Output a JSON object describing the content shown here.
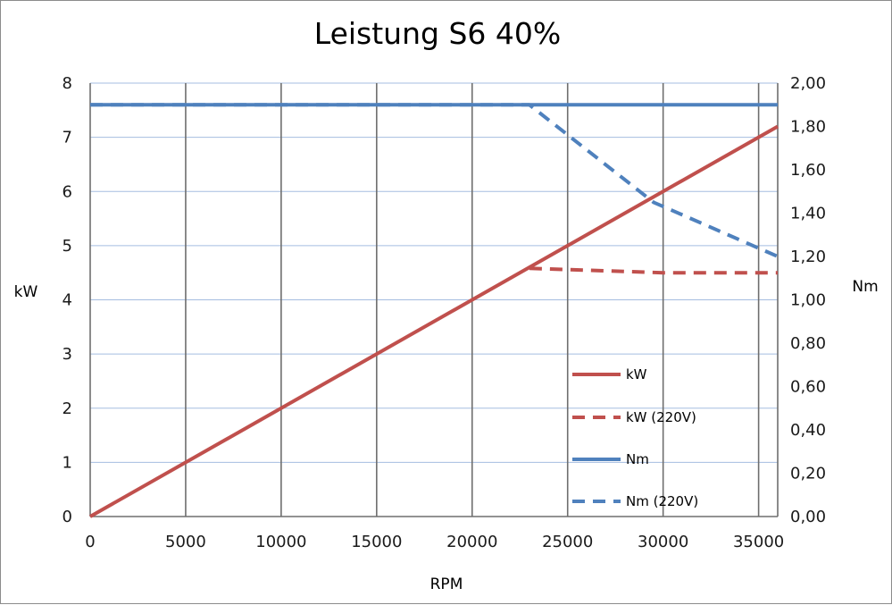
{
  "chart_data": {
    "type": "line",
    "title": "Leistung S6 40%",
    "xlabel": "RPM",
    "ylabel": "kW",
    "y2label": "Nm",
    "xlim": [
      0,
      36000
    ],
    "ylim": [
      0,
      8
    ],
    "y2lim": [
      0,
      2
    ],
    "xticks": [
      0,
      5000,
      10000,
      15000,
      20000,
      25000,
      30000,
      35000
    ],
    "yticks": [
      0,
      1,
      2,
      3,
      4,
      5,
      6,
      7,
      8
    ],
    "y2ticks": [
      "0,00",
      "0,20",
      "0,40",
      "0,60",
      "0,80",
      "1,00",
      "1,20",
      "1,40",
      "1,60",
      "1,80",
      "2,00"
    ],
    "grid": {
      "vertical": true,
      "horizontal": true
    },
    "legend_position": "lower-right",
    "colors": {
      "red": "#c0504d",
      "blue": "#4f81bd"
    },
    "series": [
      {
        "name": "kW",
        "axis": "left",
        "style": "solid",
        "color": "#c0504d",
        "x": [
          0,
          36000
        ],
        "y": [
          0,
          7.2
        ]
      },
      {
        "name": "kW (220V)",
        "axis": "left",
        "style": "dashed",
        "color": "#c0504d",
        "x": [
          23000,
          30000,
          36000
        ],
        "y": [
          4.58,
          4.5,
          4.5
        ]
      },
      {
        "name": "Nm",
        "axis": "right",
        "style": "solid",
        "color": "#4f81bd",
        "x": [
          0,
          36000
        ],
        "y": [
          1.9,
          1.9
        ]
      },
      {
        "name": "Nm (220V)",
        "axis": "right",
        "style": "dashed",
        "color": "#4f81bd",
        "x": [
          0,
          23000,
          29500,
          36000
        ],
        "y": [
          1.9,
          1.9,
          1.45,
          1.2
        ]
      }
    ]
  }
}
